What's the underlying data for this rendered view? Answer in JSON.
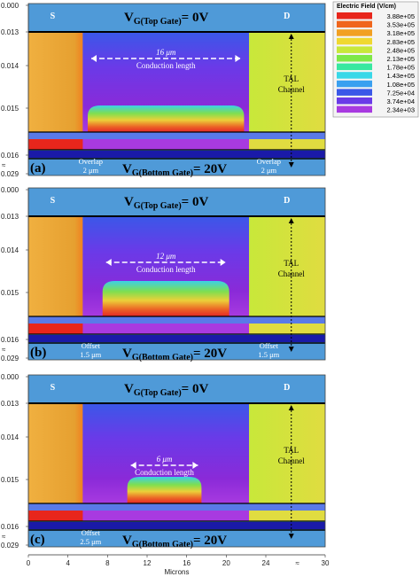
{
  "colors": {
    "oxide": "#4f9ad8",
    "source": "#e5a238",
    "drain": "#d9d846",
    "channel_purple": "#7a2ad8",
    "channel_violet": "#9a3ad8",
    "gate_line": "#000000",
    "tal_dark": "#1a1aa8"
  },
  "legend": {
    "title": "Electric Field (V/cm)",
    "values": [
      "3.88e+05",
      "3.53e+05",
      "3.18e+05",
      "2.83e+05",
      "2.48e+05",
      "2.13e+05",
      "1.78e+05",
      "1.43e+05",
      "1.08e+05",
      "7.25e+04",
      "3.74e+04",
      "2.34e+03"
    ],
    "colors": [
      "#e8261c",
      "#f0661c",
      "#f2a022",
      "#f0d830",
      "#c8e83a",
      "#7ee848",
      "#38e8a0",
      "#38d8e8",
      "#3aa0f0",
      "#3a58e8",
      "#6a3ae8",
      "#a83ae0"
    ]
  },
  "x_axis": {
    "label": "Microns",
    "ticks": [
      "0",
      "4",
      "8",
      "12",
      "16",
      "20",
      "24",
      "30"
    ],
    "break_symbol": "≈"
  },
  "y_axis": {
    "ticks": [
      "0.000",
      "0.013",
      "0.014",
      "0.015",
      "0.016",
      "0.029"
    ],
    "break_symbol": "≈"
  },
  "panels": [
    {
      "letter": "(a)",
      "top_gate": "V",
      "top_gate_sub": "G(Top Gate)",
      "top_gate_val": "= 0V",
      "bottom_gate": "V",
      "bottom_gate_sub": "G(Bottom Gate)",
      "bottom_gate_val": "= 20V",
      "source": "S",
      "drain": "D",
      "length": "16 μm",
      "length_label": "Conduction length",
      "left_note_1": "Overlap",
      "left_note_2": "2 μm",
      "right_note_1": "Overlap",
      "right_note_2": "2 μm",
      "tal_1": "TAL",
      "tal_2": "Channel"
    },
    {
      "letter": "(b)",
      "top_gate": "V",
      "top_gate_sub": "G(Top Gate)",
      "top_gate_val": "= 0V",
      "bottom_gate": "V",
      "bottom_gate_sub": "G(Bottom Gate)",
      "bottom_gate_val": "= 20V",
      "source": "S",
      "drain": "D",
      "length": "12 μm",
      "length_label": "Conduction length",
      "left_note_1": "Offset",
      "left_note_2": "1.5 μm",
      "right_note_1": "Offset",
      "right_note_2": "1.5 μm",
      "tal_1": "TAL",
      "tal_2": "Channel"
    },
    {
      "letter": "(c)",
      "top_gate": "V",
      "top_gate_sub": "G(Top Gate)",
      "top_gate_val": "= 0V",
      "bottom_gate": "V",
      "bottom_gate_sub": "G(Bottom Gate)",
      "bottom_gate_val": "= 20V",
      "source": "S",
      "drain": "D",
      "length": "6 μm",
      "length_label": "Conduction length",
      "left_note_1": "Offset",
      "left_note_2": "2.5 μm",
      "right_note_1": "",
      "right_note_2": "",
      "tal_1": "TAL",
      "tal_2": "Channel"
    }
  ]
}
